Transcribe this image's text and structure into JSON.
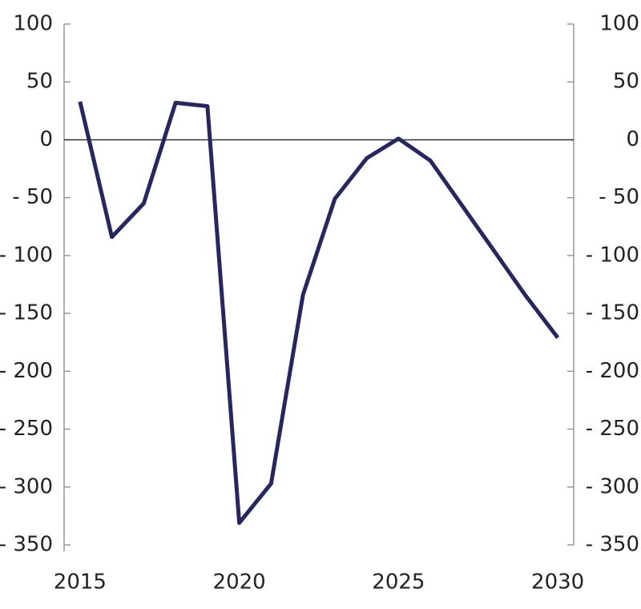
{
  "chart_data": {
    "type": "line",
    "x": [
      2015,
      2016,
      2017,
      2018,
      2019,
      2020,
      2021,
      2022,
      2023,
      2024,
      2025,
      2026,
      2027,
      2028,
      2029,
      2030
    ],
    "values": [
      33,
      -84,
      -55,
      32,
      29,
      -331,
      -297,
      -134,
      -51,
      -16,
      1,
      -18,
      -57,
      -96,
      -135,
      -171
    ],
    "color": "#27275e",
    "xlim": [
      2014.5,
      2030.5
    ],
    "xticks": [
      2015,
      2020,
      2025,
      2030
    ],
    "ylim": [
      -350,
      100
    ],
    "yticks": [
      100,
      50,
      0,
      {
        "value": -50,
        "label": "- 50"
      },
      {
        "value": -100,
        "label": "- 100"
      },
      {
        "value": -150,
        "label": "- 150"
      },
      {
        "value": -200,
        "label": "- 200"
      },
      {
        "value": -250,
        "label": "- 250"
      },
      {
        "value": -300,
        "label": "- 300"
      },
      {
        "value": -350,
        "label": "- 350"
      }
    ],
    "y2lim": [
      -350,
      100
    ],
    "y2ticks": [
      100,
      50,
      0,
      {
        "value": -50,
        "label": "- 50"
      },
      {
        "value": -100,
        "label": "- 100"
      },
      {
        "value": -150,
        "label": "- 150"
      },
      {
        "value": -200,
        "label": "- 200"
      },
      {
        "value": -250,
        "label": "- 250"
      },
      {
        "value": -300,
        "label": "- 300"
      },
      {
        "value": -350,
        "label": "- 350"
      }
    ],
    "zero_line": true
  }
}
